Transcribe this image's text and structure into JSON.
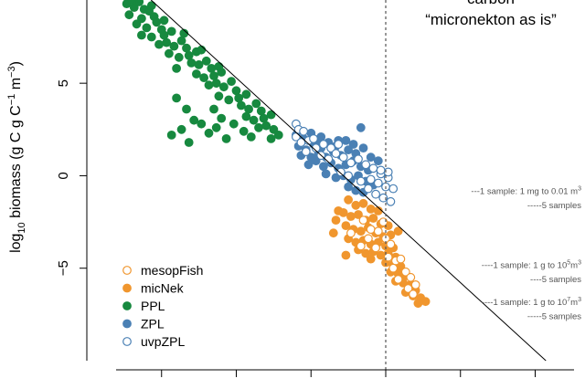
{
  "chart_data": {
    "type": "scatter",
    "ylabel_main": "log",
    "ylabel_sub": "10",
    "ylabel_rest": " biomass (g C g C",
    "ylabel_sup1": "−1",
    "ylabel_mid": " m",
    "ylabel_sup2": "−3",
    "ylabel_end": ")",
    "y_ticks": [
      "5",
      "0",
      "−5"
    ],
    "y_tick_values": [
      5,
      0,
      -5
    ],
    "ylim": [
      -10,
      9.5
    ],
    "xlim": [
      -14,
      6
    ],
    "x_tick_values": [
      -11,
      -8,
      -5,
      -2,
      1,
      4
    ],
    "vline_x": -2,
    "fit_line": {
      "intercept": -4.55,
      "slope": -1.23
    },
    "header_lines": [
      "carbon",
      "“micronekton as is”"
    ],
    "notes": [
      {
        "pre": "---1 sample: 1 mg to 0.01 m",
        "sup": "3",
        "y": -1.0
      },
      {
        "pre": "-----5 samples",
        "sup": "",
        "y": -1.75
      },
      {
        "pre": "----1 sample: 1 g to 10",
        "sup": "5",
        "post": "m",
        "sup2": "3",
        "y": -5.0
      },
      {
        "pre": "----5 samples",
        "sup": "",
        "y": -5.75
      },
      {
        "pre": "----1 sample: 1 g to 10",
        "sup": "7",
        "post": "m",
        "sup2": "3",
        "y": -7.0
      },
      {
        "pre": "-----5 samples",
        "sup": "",
        "y": -7.75
      }
    ],
    "legend": [
      {
        "name": "mesopFish",
        "color": "#F0962E",
        "filled": false
      },
      {
        "name": "micNek",
        "color": "#F0962E",
        "filled": true
      },
      {
        "name": "PPL",
        "color": "#17893F",
        "filled": true
      },
      {
        "name": "ZPL",
        "color": "#4A80B4",
        "filled": true
      },
      {
        "name": "uvpZPL",
        "color": "#4A80B4",
        "filled": false
      }
    ],
    "series": [
      {
        "name": "PPL",
        "color": "#17893F",
        "filled": true,
        "points": [
          [
            -12.4,
            9.3
          ],
          [
            -12.1,
            9.1
          ],
          [
            -11.9,
            9.4
          ],
          [
            -11.7,
            9.0
          ],
          [
            -12.3,
            8.7
          ],
          [
            -11.8,
            8.5
          ],
          [
            -11.5,
            8.9
          ],
          [
            -11.3,
            8.6
          ],
          [
            -12.0,
            8.2
          ],
          [
            -11.6,
            8.0
          ],
          [
            -11.2,
            8.3
          ],
          [
            -11.0,
            7.9
          ],
          [
            -11.8,
            7.6
          ],
          [
            -11.4,
            7.5
          ],
          [
            -10.9,
            7.6
          ],
          [
            -10.6,
            7.8
          ],
          [
            -10.8,
            7.2
          ],
          [
            -10.5,
            7.0
          ],
          [
            -10.2,
            7.3
          ],
          [
            -10.0,
            6.9
          ],
          [
            -10.7,
            6.6
          ],
          [
            -10.3,
            6.4
          ],
          [
            -9.9,
            6.5
          ],
          [
            -9.6,
            6.7
          ],
          [
            -9.8,
            6.1
          ],
          [
            -9.5,
            6.0
          ],
          [
            -9.2,
            6.2
          ],
          [
            -9.0,
            5.8
          ],
          [
            -9.6,
            5.5
          ],
          [
            -9.3,
            5.3
          ],
          [
            -8.9,
            5.4
          ],
          [
            -8.6,
            5.6
          ],
          [
            -8.8,
            5.0
          ],
          [
            -8.5,
            4.8
          ],
          [
            -8.2,
            5.1
          ],
          [
            -8.0,
            4.6
          ],
          [
            -8.7,
            4.3
          ],
          [
            -8.3,
            4.1
          ],
          [
            -7.9,
            4.2
          ],
          [
            -7.6,
            4.4
          ],
          [
            -7.8,
            3.8
          ],
          [
            -7.5,
            3.6
          ],
          [
            -7.2,
            3.9
          ],
          [
            -7.0,
            3.5
          ],
          [
            -7.6,
            3.2
          ],
          [
            -7.3,
            3.0
          ],
          [
            -6.9,
            3.1
          ],
          [
            -6.6,
            3.3
          ],
          [
            -6.8,
            2.7
          ],
          [
            -6.5,
            2.5
          ],
          [
            -6.3,
            2.2
          ],
          [
            -6.6,
            2.0
          ],
          [
            -10.4,
            4.2
          ],
          [
            -10.0,
            3.6
          ],
          [
            -9.7,
            3.0
          ],
          [
            -10.2,
            2.5
          ],
          [
            -9.4,
            2.8
          ],
          [
            -9.1,
            2.3
          ],
          [
            -8.8,
            2.6
          ],
          [
            -8.4,
            2.0
          ],
          [
            -10.6,
            2.2
          ],
          [
            -9.9,
            1.8
          ],
          [
            -8.6,
            3.1
          ],
          [
            -8.1,
            2.8
          ],
          [
            -7.7,
            2.4
          ],
          [
            -7.4,
            2.1
          ],
          [
            -11.1,
            7.1
          ],
          [
            -10.4,
            5.8
          ],
          [
            -9.1,
            4.9
          ],
          [
            -8.9,
            3.6
          ],
          [
            -7.1,
            2.6
          ],
          [
            -11.9,
            9.6
          ],
          [
            -12.2,
            9.5
          ],
          [
            -11.4,
            9.2
          ],
          [
            -10.9,
            8.4
          ],
          [
            -10.1,
            7.7
          ],
          [
            -9.4,
            6.8
          ],
          [
            -8.7,
            5.9
          ]
        ]
      },
      {
        "name": "ZPL",
        "color": "#4A80B4",
        "filled": true,
        "points": [
          [
            -5.6,
            2.2
          ],
          [
            -5.3,
            2.0
          ],
          [
            -5.0,
            2.3
          ],
          [
            -4.7,
            1.9
          ],
          [
            -5.5,
            1.6
          ],
          [
            -5.2,
            1.4
          ],
          [
            -4.9,
            1.7
          ],
          [
            -4.6,
            1.5
          ],
          [
            -4.3,
            1.8
          ],
          [
            -4.0,
            1.6
          ],
          [
            -5.4,
            1.1
          ],
          [
            -5.0,
            1.0
          ],
          [
            -4.7,
            1.2
          ],
          [
            -4.4,
            1.0
          ],
          [
            -4.1,
            1.3
          ],
          [
            -3.8,
            1.1
          ],
          [
            -3.5,
            1.4
          ],
          [
            -3.2,
            1.2
          ],
          [
            -5.1,
            0.6
          ],
          [
            -4.8,
            0.8
          ],
          [
            -4.5,
            0.5
          ],
          [
            -4.2,
            0.7
          ],
          [
            -3.9,
            0.4
          ],
          [
            -3.6,
            0.6
          ],
          [
            -3.3,
            0.8
          ],
          [
            -3.0,
            0.5
          ],
          [
            -2.7,
            0.3
          ],
          [
            -4.4,
            0.1
          ],
          [
            -4.0,
            -0.1
          ],
          [
            -3.7,
            0.0
          ],
          [
            -3.4,
            -0.2
          ],
          [
            -3.1,
            0.0
          ],
          [
            -2.8,
            -0.3
          ],
          [
            -2.5,
            -0.5
          ],
          [
            -3.5,
            -0.6
          ],
          [
            -3.2,
            -0.8
          ],
          [
            -2.9,
            -0.9
          ],
          [
            -3.6,
            1.9
          ],
          [
            -3.3,
            1.7
          ],
          [
            -2.9,
            1.5
          ],
          [
            -3.0,
            2.6
          ],
          [
            -2.6,
            1.0
          ],
          [
            -2.3,
            0.8
          ],
          [
            -4.6,
            2.1
          ],
          [
            -3.9,
            1.9
          ]
        ]
      },
      {
        "name": "uvpZPL",
        "color": "#4A80B4",
        "filled": false,
        "points": [
          [
            -5.6,
            2.8
          ],
          [
            -5.5,
            2.5
          ],
          [
            -5.3,
            2.4
          ],
          [
            -5.6,
            2.1
          ],
          [
            -5.4,
            1.8
          ],
          [
            -5.1,
            1.9
          ],
          [
            -4.9,
            2.0
          ],
          [
            -5.2,
            1.3
          ],
          [
            -4.8,
            1.5
          ],
          [
            -4.5,
            1.7
          ],
          [
            -4.2,
            1.5
          ],
          [
            -3.9,
            1.7
          ],
          [
            -4.6,
            1.1
          ],
          [
            -4.3,
            0.9
          ],
          [
            -4.0,
            1.2
          ],
          [
            -3.7,
            1.0
          ],
          [
            -3.4,
            0.7
          ],
          [
            -3.1,
            0.9
          ],
          [
            -2.8,
            0.6
          ],
          [
            -2.5,
            0.4
          ],
          [
            -2.2,
            0.1
          ],
          [
            -1.9,
            -0.1
          ],
          [
            -2.6,
            -0.2
          ],
          [
            -2.3,
            -0.4
          ],
          [
            -2.0,
            -0.6
          ],
          [
            -1.7,
            -0.7
          ],
          [
            -2.4,
            -1.0
          ],
          [
            -2.1,
            -1.2
          ],
          [
            -1.8,
            -1.4
          ],
          [
            -1.9,
            0.2
          ],
          [
            -2.2,
            0.3
          ],
          [
            -3.8,
            0.2
          ],
          [
            -3.5,
            0.0
          ],
          [
            -3.0,
            -0.3
          ],
          [
            -2.7,
            -0.7
          ]
        ]
      },
      {
        "name": "micNek",
        "color": "#F0962E",
        "filled": true,
        "points": [
          [
            -3.5,
            -1.3
          ],
          [
            -3.2,
            -1.6
          ],
          [
            -2.9,
            -1.5
          ],
          [
            -2.6,
            -1.8
          ],
          [
            -3.7,
            -2.0
          ],
          [
            -3.4,
            -2.2
          ],
          [
            -3.1,
            -2.1
          ],
          [
            -2.8,
            -2.4
          ],
          [
            -2.5,
            -2.3
          ],
          [
            -2.2,
            -2.6
          ],
          [
            -3.6,
            -2.7
          ],
          [
            -3.3,
            -2.9
          ],
          [
            -3.0,
            -3.0
          ],
          [
            -2.7,
            -2.8
          ],
          [
            -2.4,
            -3.1
          ],
          [
            -2.1,
            -3.3
          ],
          [
            -1.8,
            -3.2
          ],
          [
            -3.5,
            -3.4
          ],
          [
            -3.2,
            -3.6
          ],
          [
            -2.9,
            -3.5
          ],
          [
            -2.6,
            -3.7
          ],
          [
            -2.3,
            -3.6
          ],
          [
            -2.0,
            -3.8
          ],
          [
            -1.7,
            -3.9
          ],
          [
            -3.1,
            -4.0
          ],
          [
            -2.8,
            -4.2
          ],
          [
            -2.5,
            -4.1
          ],
          [
            -2.2,
            -4.3
          ],
          [
            -1.9,
            -4.2
          ],
          [
            -1.6,
            -4.4
          ],
          [
            -2.0,
            -4.7
          ],
          [
            -1.7,
            -4.8
          ],
          [
            -1.4,
            -4.9
          ],
          [
            -1.8,
            -5.2
          ],
          [
            -1.5,
            -5.3
          ],
          [
            -1.2,
            -5.4
          ],
          [
            -1.6,
            -5.7
          ],
          [
            -1.3,
            -5.8
          ],
          [
            -1.0,
            -5.9
          ],
          [
            -0.8,
            -6.2
          ],
          [
            -1.2,
            -6.3
          ],
          [
            -0.9,
            -6.5
          ],
          [
            -0.6,
            -6.6
          ],
          [
            -0.4,
            -6.8
          ],
          [
            -0.7,
            -6.9
          ],
          [
            -4.0,
            -2.4
          ],
          [
            -3.9,
            -1.9
          ],
          [
            -3.6,
            -4.3
          ],
          [
            -4.1,
            -3.1
          ],
          [
            -2.6,
            -4.5
          ],
          [
            -2.3,
            -1.9
          ],
          [
            -1.9,
            -2.7
          ],
          [
            -1.5,
            -3.0
          ]
        ]
      },
      {
        "name": "mesopFish",
        "color": "#F0962E",
        "filled": false,
        "points": [
          [
            -2.9,
            -2.4
          ],
          [
            -2.6,
            -2.9
          ],
          [
            -2.3,
            -3.0
          ],
          [
            -2.0,
            -3.4
          ],
          [
            -1.8,
            -3.7
          ],
          [
            -2.4,
            -3.9
          ],
          [
            -2.7,
            -3.4
          ],
          [
            -3.0,
            -3.8
          ],
          [
            -1.9,
            -4.4
          ],
          [
            -1.6,
            -4.6
          ],
          [
            -1.4,
            -4.5
          ],
          [
            -1.7,
            -5.0
          ],
          [
            -1.5,
            -5.6
          ],
          [
            -1.2,
            -5.2
          ],
          [
            -1.0,
            -5.5
          ],
          [
            -1.1,
            -6.1
          ],
          [
            -0.8,
            -5.9
          ],
          [
            -0.9,
            -6.4
          ],
          [
            -3.4,
            -3.1
          ],
          [
            -2.1,
            -2.5
          ]
        ]
      }
    ]
  }
}
